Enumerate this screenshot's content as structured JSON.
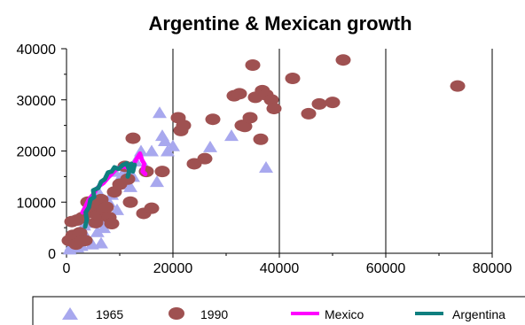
{
  "chart_data": {
    "type": "scatter",
    "title": "Argentine & Mexican growth",
    "xlabel": "",
    "ylabel": "",
    "xlim": [
      0,
      80000
    ],
    "ylim": [
      0,
      40000
    ],
    "x_ticks": [
      "0",
      "20000",
      "40000",
      "60000",
      "80000"
    ],
    "y_ticks": [
      "0",
      "10000",
      "20000",
      "30000",
      "40000"
    ],
    "grid": "vertical lines at x ticks",
    "legend_position": "bottom",
    "series": [
      {
        "name": "1965",
        "kind": "scatter",
        "marker": "triangle",
        "color": "#a8a8ee",
        "points": [
          [
            600,
            800
          ],
          [
            900,
            1500
          ],
          [
            1200,
            2500
          ],
          [
            1500,
            3500
          ],
          [
            2000,
            1200
          ],
          [
            2500,
            2000
          ],
          [
            3000,
            4500
          ],
          [
            3500,
            3000
          ],
          [
            4000,
            6000
          ],
          [
            4500,
            8000
          ],
          [
            5000,
            11000
          ],
          [
            5500,
            9500
          ],
          [
            6000,
            12000
          ],
          [
            6500,
            2000
          ],
          [
            7000,
            5000
          ],
          [
            7500,
            7000
          ],
          [
            8000,
            10000
          ],
          [
            8500,
            11500
          ],
          [
            9000,
            16000
          ],
          [
            9500,
            8500
          ],
          [
            10000,
            13500
          ],
          [
            10500,
            15500
          ],
          [
            11000,
            14000
          ],
          [
            11500,
            16500
          ],
          [
            12000,
            13000
          ],
          [
            12500,
            15000
          ],
          [
            13000,
            18000
          ],
          [
            14000,
            20000
          ],
          [
            15000,
            16500
          ],
          [
            16000,
            20000
          ],
          [
            17000,
            14000
          ],
          [
            17500,
            27500
          ],
          [
            18000,
            23000
          ],
          [
            18500,
            22000
          ],
          [
            19000,
            20000
          ],
          [
            20000,
            21000
          ],
          [
            27000,
            20800
          ],
          [
            31000,
            23000
          ],
          [
            37500,
            16800
          ],
          [
            4800,
            1800
          ],
          [
            2800,
            1500
          ],
          [
            1800,
            2200
          ],
          [
            3300,
            5500
          ],
          [
            5800,
            4200
          ]
        ]
      },
      {
        "name": "1990",
        "kind": "scatter",
        "marker": "circle",
        "color": "#9f5151",
        "points": [
          [
            500,
            2500
          ],
          [
            1000,
            6200
          ],
          [
            1200,
            3500
          ],
          [
            1800,
            1800
          ],
          [
            2000,
            6500
          ],
          [
            2500,
            4000
          ],
          [
            3000,
            7000
          ],
          [
            3500,
            2500
          ],
          [
            4000,
            10000
          ],
          [
            4500,
            8000
          ],
          [
            5000,
            9000
          ],
          [
            5500,
            6000
          ],
          [
            6000,
            7500
          ],
          [
            6500,
            10500
          ],
          [
            7000,
            8500
          ],
          [
            7500,
            9000
          ],
          [
            8000,
            7000
          ],
          [
            8500,
            5800
          ],
          [
            9000,
            12000
          ],
          [
            10000,
            13500
          ],
          [
            11000,
            17000
          ],
          [
            11500,
            14500
          ],
          [
            12000,
            10000
          ],
          [
            12500,
            22500
          ],
          [
            14500,
            7800
          ],
          [
            15000,
            16000
          ],
          [
            16000,
            8800
          ],
          [
            18000,
            16000
          ],
          [
            21000,
            26500
          ],
          [
            21500,
            24000
          ],
          [
            22000,
            25000
          ],
          [
            24000,
            17500
          ],
          [
            26000,
            18500
          ],
          [
            27500,
            26200
          ],
          [
            31500,
            30800
          ],
          [
            32500,
            31200
          ],
          [
            33000,
            25000
          ],
          [
            33500,
            24800
          ],
          [
            34500,
            26500
          ],
          [
            35000,
            36800
          ],
          [
            35500,
            30500
          ],
          [
            36500,
            22300
          ],
          [
            36800,
            31800
          ],
          [
            37500,
            31000
          ],
          [
            38500,
            30000
          ],
          [
            39000,
            28300
          ],
          [
            42500,
            34200
          ],
          [
            45500,
            27300
          ],
          [
            47500,
            29200
          ],
          [
            50000,
            29500
          ],
          [
            52000,
            37800
          ],
          [
            73500,
            32700
          ],
          [
            2800,
            2400
          ]
        ]
      },
      {
        "name": "Mexico",
        "kind": "line",
        "color": "#ff00ff",
        "points": [
          [
            3000,
            8000
          ],
          [
            3600,
            9200
          ],
          [
            4200,
            10500
          ],
          [
            5000,
            11500
          ],
          [
            5600,
            12500
          ],
          [
            6200,
            13200
          ],
          [
            7000,
            13800
          ],
          [
            7800,
            14800
          ],
          [
            8500,
            15500
          ],
          [
            9200,
            16300
          ],
          [
            10000,
            16800
          ],
          [
            11000,
            17000
          ],
          [
            11800,
            16500
          ],
          [
            12500,
            17200
          ],
          [
            13200,
            18500
          ],
          [
            13800,
            19500
          ],
          [
            14200,
            18200
          ],
          [
            14600,
            17500
          ],
          [
            14300,
            16000
          ],
          [
            14800,
            15500
          ]
        ]
      },
      {
        "name": "Argentina",
        "kind": "line",
        "color": "#0f7f7f",
        "points": [
          [
            3500,
            5200
          ],
          [
            3800,
            6500
          ],
          [
            3600,
            8000
          ],
          [
            4200,
            9000
          ],
          [
            4500,
            10500
          ],
          [
            5200,
            11000
          ],
          [
            5000,
            12300
          ],
          [
            6000,
            12800
          ],
          [
            6500,
            14000
          ],
          [
            7200,
            14500
          ],
          [
            7800,
            15800
          ],
          [
            8500,
            16000
          ],
          [
            9000,
            16800
          ],
          [
            9800,
            16500
          ],
          [
            10500,
            17200
          ],
          [
            11300,
            17600
          ],
          [
            11800,
            16200
          ],
          [
            11500,
            15000
          ],
          [
            12200,
            17500
          ],
          [
            12500,
            16000
          ],
          [
            12800,
            17300
          ]
        ]
      }
    ]
  }
}
